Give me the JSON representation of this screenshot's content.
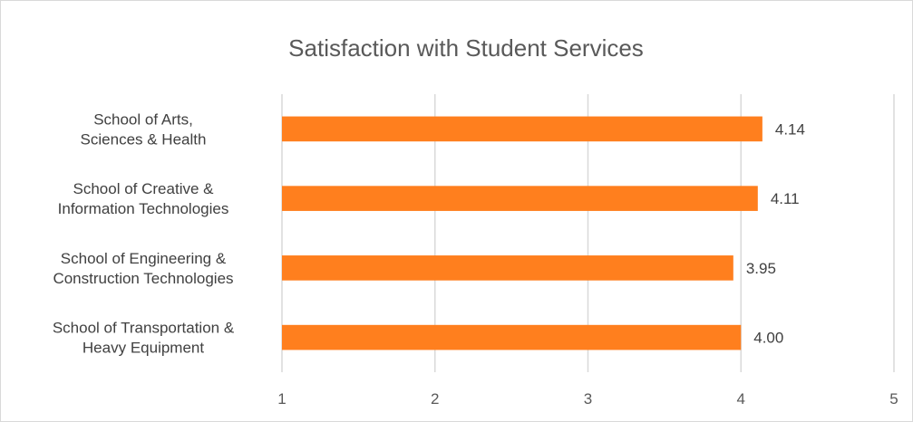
{
  "chart_data": {
    "type": "bar",
    "orientation": "horizontal",
    "title": "Satisfaction with Student Services",
    "categories": [
      [
        "School of Arts,",
        "Sciences & Health"
      ],
      [
        "School of Creative &",
        "Information Technologies"
      ],
      [
        "School of Engineering &",
        "Construction Technologies"
      ],
      [
        "School of Transportation &",
        "Heavy Equipment"
      ]
    ],
    "values": [
      4.14,
      4.11,
      3.95,
      4.0
    ],
    "data_labels": [
      "4.14",
      "4.11",
      "3.95",
      "4.00"
    ],
    "xlim": [
      1,
      5
    ],
    "x_ticks": [
      "1",
      "2",
      "3",
      "4",
      "5"
    ],
    "xlabel": "",
    "ylabel": "",
    "grid": "vertical",
    "legend": "none",
    "bar_color": "#ff7f1e",
    "grid_color": "#d9d9d9"
  }
}
